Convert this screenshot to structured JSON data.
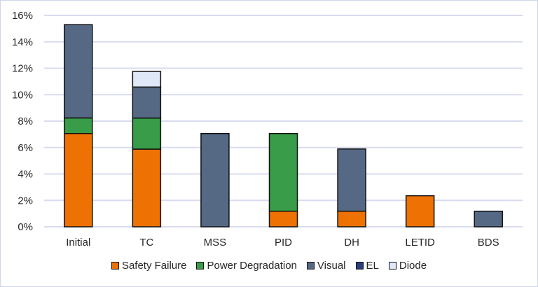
{
  "chart_data": {
    "type": "bar",
    "stacked": true,
    "categories": [
      "Initial",
      "TC",
      "MSS",
      "PID",
      "DH",
      "LETID",
      "BDS"
    ],
    "series": [
      {
        "name": "Safety Failure",
        "color": "#ee7203",
        "values": [
          7.06,
          5.88,
          0,
          1.18,
          1.18,
          2.35,
          0
        ]
      },
      {
        "name": "Power Degradation",
        "color": "#389c48",
        "values": [
          1.18,
          2.35,
          0,
          5.88,
          0,
          0,
          0
        ]
      },
      {
        "name": "Visual",
        "color": "#556985",
        "values": [
          7.06,
          2.35,
          7.06,
          0,
          4.71,
          0,
          1.18
        ]
      },
      {
        "name": "EL",
        "color": "#2b3d7c",
        "values": [
          0,
          0,
          0,
          0,
          0,
          0,
          0
        ]
      },
      {
        "name": "Diode",
        "color": "#dfe8f6",
        "values": [
          0,
          1.18,
          0,
          0,
          0,
          0,
          0
        ]
      }
    ],
    "ylim": [
      0,
      16
    ],
    "yticks": [
      "0%",
      "2%",
      "4%",
      "6%",
      "8%",
      "10%",
      "12%",
      "14%",
      "16%"
    ],
    "title": "",
    "xlabel": "",
    "ylabel": "",
    "grid": true,
    "legend_position": "bottom"
  }
}
